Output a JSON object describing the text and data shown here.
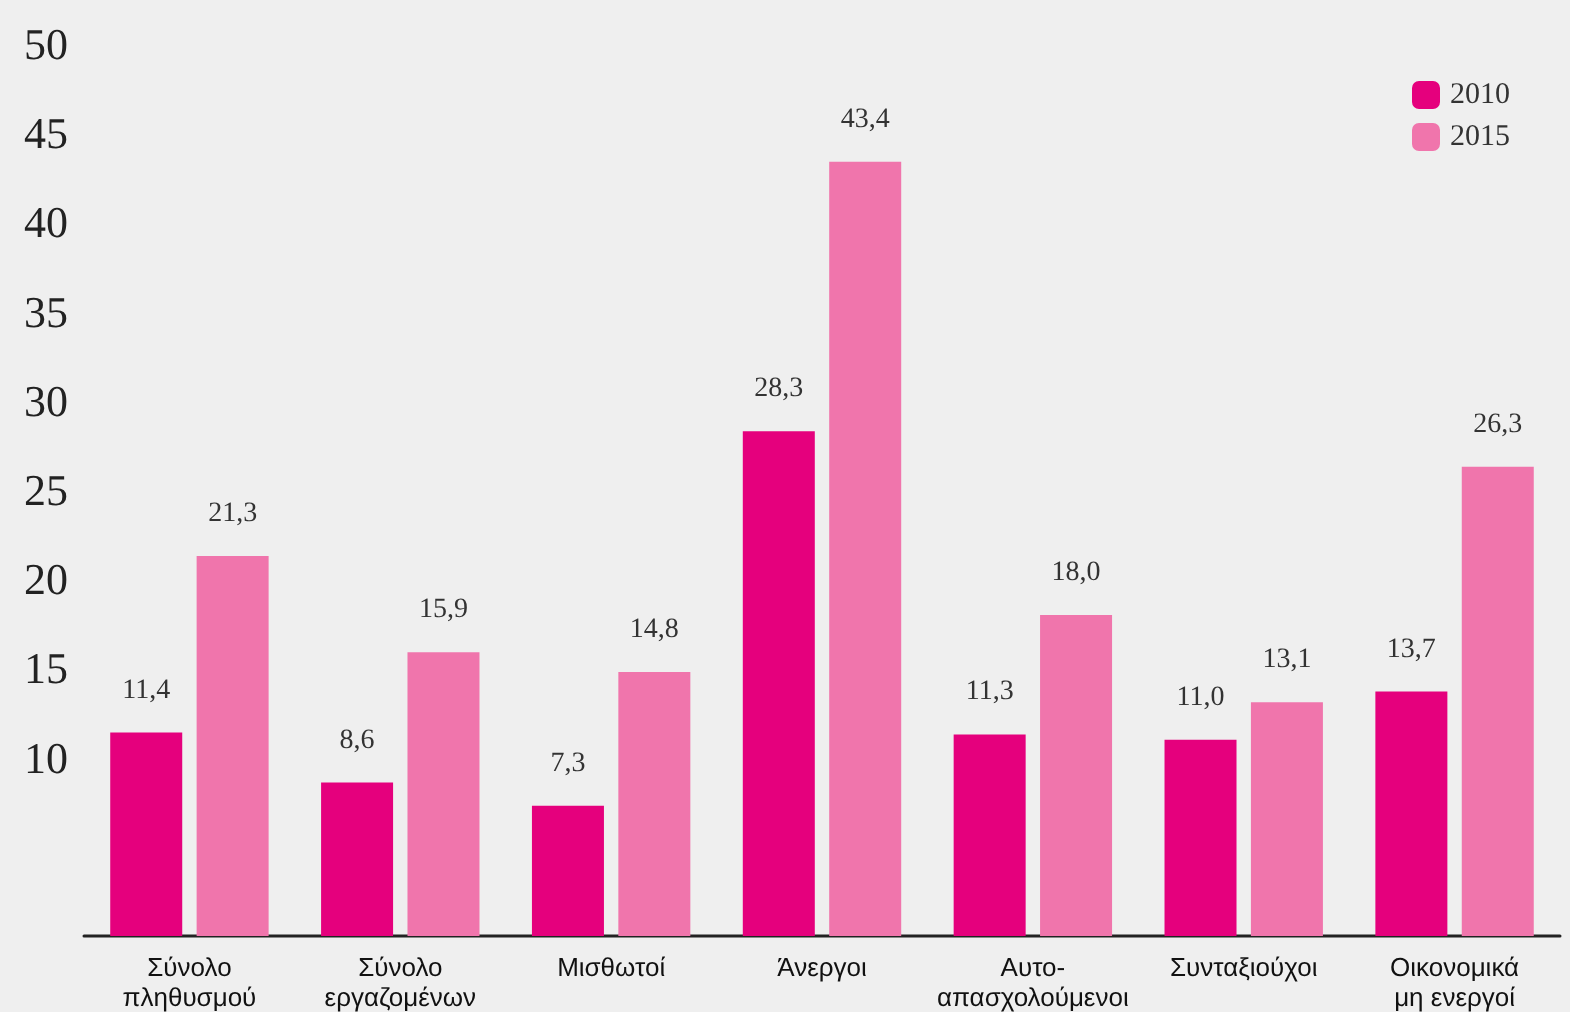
{
  "chart_data": {
    "type": "bar",
    "categories": [
      "Σύνολο\nπληθυσμού",
      "Σύνολο\nεργαζομένων",
      "Μισθωτοί",
      "Άνεργοι",
      "Αυτο-\nαπασχολούμενοι",
      "Συνταξιούχοι",
      "Οικονομικά\nμη ενεργοί"
    ],
    "series": [
      {
        "name": "2010",
        "color": "#e5007d",
        "values": [
          11.4,
          8.6,
          7.3,
          28.3,
          11.3,
          11.0,
          13.7
        ],
        "value_labels": [
          "11,4",
          "8,6",
          "7,3",
          "28,3",
          "11,3",
          "11,0",
          "13,7"
        ]
      },
      {
        "name": "2015",
        "color": "#f075ac",
        "values": [
          21.3,
          15.9,
          14.8,
          43.4,
          18.0,
          13.1,
          26.3
        ],
        "value_labels": [
          "21,3",
          "15,9",
          "14,8",
          "43,4",
          "18,0",
          "13,1",
          "26,3"
        ]
      }
    ],
    "ylim": [
      0,
      50
    ],
    "yticks": [
      10,
      15,
      20,
      25,
      30,
      35,
      40,
      45,
      50
    ],
    "legend": "top right",
    "grid": false
  }
}
